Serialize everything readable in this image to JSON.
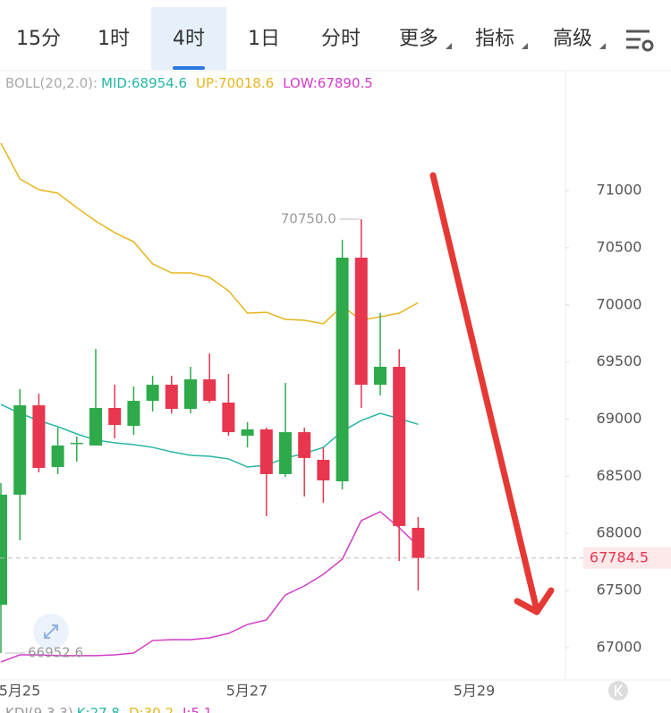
{
  "tabs": [
    "15分",
    "1时",
    "4时",
    "1日",
    "分时",
    "更多",
    "指标",
    "高级"
  ],
  "active_tab_index": 2,
  "dropdown_tab_indexes": [
    5,
    6,
    7
  ],
  "indicator": {
    "name": "BOLL(20,2.0):",
    "items": [
      {
        "label": "MID:",
        "value": 68954.6,
        "color": "#26b5a5"
      },
      {
        "label": "UP:",
        "value": 70018.6,
        "color": "#e5b51c"
      },
      {
        "label": "LOW:",
        "value": 67890.5,
        "color": "#d23cc8"
      }
    ]
  },
  "sub_indicator": {
    "name": "KDJ(9,3,3)",
    "items": [
      {
        "label": "K:",
        "value": 27.8,
        "color": "#26b5a5"
      },
      {
        "label": "D:",
        "value": 30.2,
        "color": "#e5b51c"
      },
      {
        "label": "J:",
        "value": 5.1,
        "color": "#d23cc8"
      }
    ]
  },
  "chart_data": {
    "type": "candlestick",
    "up_color": "#2eaa4a",
    "down_color": "#e8364f",
    "ylim": [
      66718,
      71885
    ],
    "yticks": [
      67000,
      67500,
      68000,
      68500,
      69000,
      69500,
      70000,
      70500,
      71000
    ],
    "x_labels": [
      "5月25",
      "5月27",
      "5月29"
    ],
    "open": [
      67376,
      68339,
      69121,
      68581,
      68785,
      68769,
      69098,
      68941,
      69160,
      69301,
      69090,
      69348,
      69145,
      68855,
      68910,
      68519,
      68886,
      68644,
      68456,
      70413,
      69301,
      69458,
      68049
    ],
    "high": [
      68440,
      69262,
      69223,
      68926,
      68847,
      69614,
      69301,
      69286,
      69380,
      69380,
      69458,
      69575,
      69395,
      68973,
      68926,
      69317,
      68926,
      68753,
      70569,
      70750,
      69928,
      69614,
      68143
    ],
    "low": [
      66952.6,
      67939,
      68534,
      68519,
      68628,
      68769,
      68832,
      68863,
      69067,
      69051,
      69051,
      69145,
      68855,
      68753,
      68151,
      68495,
      68323,
      68268,
      68386,
      69098,
      69207,
      67759,
      67501
    ],
    "close": [
      68339,
      69121,
      68573,
      68769,
      68793,
      69098,
      68949,
      69160,
      69301,
      69090,
      69348,
      69160,
      68886,
      68910,
      68519,
      68886,
      68660,
      68464,
      70413,
      69301,
      69458,
      68065,
      67784.5
    ],
    "lines": [
      {
        "name": "UP",
        "color": "#e5b51c",
        "values": [
          71415,
          71102,
          71008,
          70977,
          70851,
          70733,
          70632,
          70552,
          70358,
          70280,
          70280,
          70240,
          70123,
          69928,
          69935,
          69873,
          69865,
          69834,
          69990,
          69865,
          69896,
          69928,
          70018.6
        ]
      },
      {
        "name": "MID",
        "color": "#26b5a5",
        "values": [
          69129,
          69051,
          68988,
          68934,
          68871,
          68816,
          68793,
          68777,
          68753,
          68714,
          68683,
          68675,
          68652,
          68581,
          68597,
          68660,
          68699,
          68753,
          68894,
          68988,
          69051,
          69004,
          68954.6
        ]
      },
      {
        "name": "LOW",
        "color": "#d23cc8",
        "values": [
          66875,
          66937,
          66937,
          66930,
          66930,
          66930,
          66937,
          66953,
          67063,
          67070,
          67070,
          67086,
          67125,
          67203,
          67243,
          67462,
          67540,
          67642,
          67775,
          68112,
          68190,
          68049,
          67890.5
        ]
      }
    ],
    "high_label": {
      "value": 70750,
      "label": "70750.0"
    },
    "low_label": {
      "value": 66952.6,
      "label": "66952.6"
    },
    "last_price": {
      "value": 67784.5,
      "label": "67784.5"
    }
  }
}
